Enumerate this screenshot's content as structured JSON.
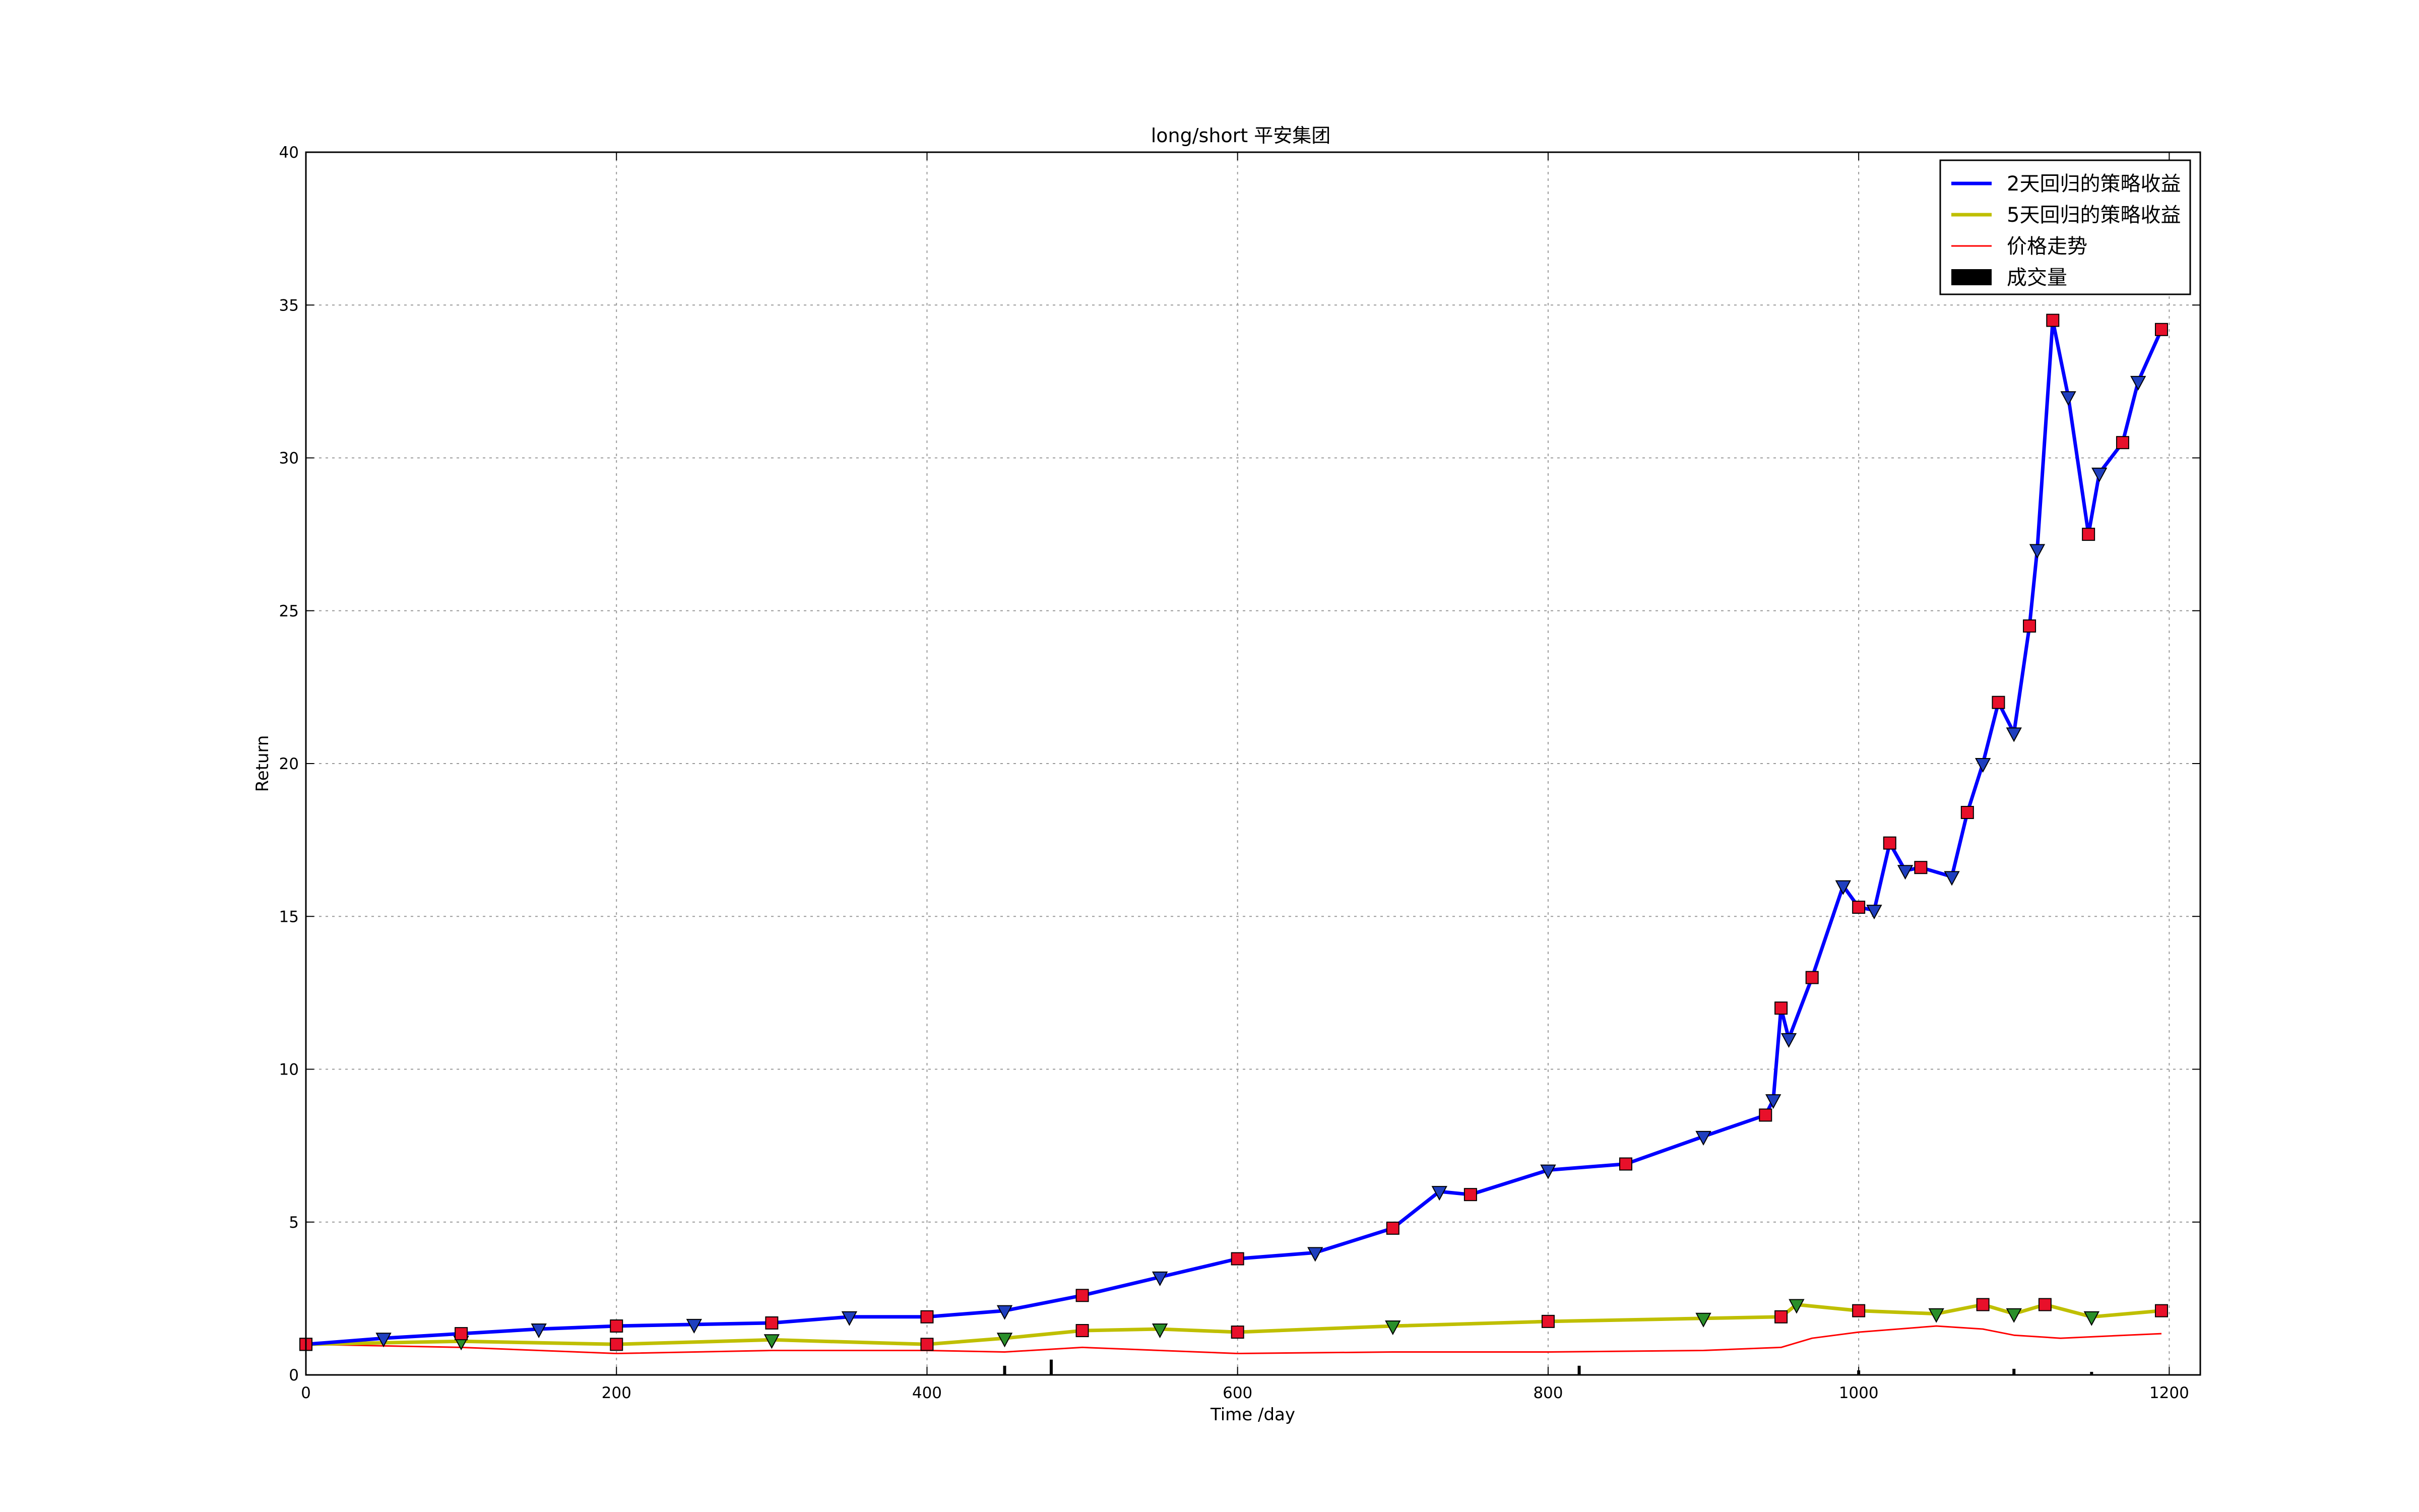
{
  "chart_data": {
    "type": "line",
    "title": "long/short 平安集团",
    "xlabel": "Time /day",
    "ylabel": "Return",
    "xlim": [
      0,
      1220
    ],
    "ylim": [
      0,
      40
    ],
    "xticks": [
      0,
      200,
      400,
      600,
      800,
      1000,
      1200
    ],
    "yticks": [
      0,
      5,
      10,
      15,
      20,
      25,
      30,
      35,
      40
    ],
    "grid": true,
    "legend_position": "top-right",
    "series": [
      {
        "name": "2天回归的策略收益",
        "color": "#0000ff",
        "points": [
          [
            0,
            1.0
          ],
          [
            50,
            1.2
          ],
          [
            100,
            1.35
          ],
          [
            150,
            1.5
          ],
          [
            200,
            1.6
          ],
          [
            250,
            1.65
          ],
          [
            300,
            1.7
          ],
          [
            350,
            1.9
          ],
          [
            400,
            1.9
          ],
          [
            450,
            2.1
          ],
          [
            500,
            2.6
          ],
          [
            550,
            3.2
          ],
          [
            600,
            3.8
          ],
          [
            650,
            4.0
          ],
          [
            700,
            4.8
          ],
          [
            730,
            6.0
          ],
          [
            750,
            5.9
          ],
          [
            800,
            6.7
          ],
          [
            850,
            6.9
          ],
          [
            900,
            7.8
          ],
          [
            940,
            8.5
          ],
          [
            945,
            9.0
          ],
          [
            950,
            12.0
          ],
          [
            955,
            11.0
          ],
          [
            970,
            13.0
          ],
          [
            990,
            16.0
          ],
          [
            1000,
            15.3
          ],
          [
            1010,
            15.2
          ],
          [
            1020,
            17.4
          ],
          [
            1030,
            16.5
          ],
          [
            1040,
            16.6
          ],
          [
            1060,
            16.3
          ],
          [
            1070,
            18.4
          ],
          [
            1080,
            20.0
          ],
          [
            1090,
            22.0
          ],
          [
            1100,
            21.0
          ],
          [
            1110,
            24.5
          ],
          [
            1115,
            27.0
          ],
          [
            1125,
            34.5
          ],
          [
            1135,
            32.0
          ],
          [
            1148,
            27.5
          ],
          [
            1155,
            29.5
          ],
          [
            1170,
            30.5
          ],
          [
            1180,
            32.5
          ],
          [
            1195,
            34.2
          ]
        ]
      },
      {
        "name": "5天回归的策略收益",
        "color": "#bfbf00",
        "points": [
          [
            0,
            1.0
          ],
          [
            100,
            1.1
          ],
          [
            200,
            1.0
          ],
          [
            300,
            1.15
          ],
          [
            400,
            1.0
          ],
          [
            450,
            1.2
          ],
          [
            500,
            1.45
          ],
          [
            550,
            1.5
          ],
          [
            600,
            1.4
          ],
          [
            700,
            1.6
          ],
          [
            800,
            1.75
          ],
          [
            900,
            1.85
          ],
          [
            950,
            1.9
          ],
          [
            960,
            2.3
          ],
          [
            1000,
            2.1
          ],
          [
            1050,
            2.0
          ],
          [
            1080,
            2.3
          ],
          [
            1100,
            2.0
          ],
          [
            1120,
            2.3
          ],
          [
            1150,
            1.9
          ],
          [
            1195,
            2.1
          ]
        ]
      },
      {
        "name": "价格走势",
        "color": "#ff0000",
        "points": [
          [
            0,
            1.0
          ],
          [
            100,
            0.9
          ],
          [
            200,
            0.7
          ],
          [
            300,
            0.8
          ],
          [
            400,
            0.8
          ],
          [
            450,
            0.75
          ],
          [
            500,
            0.9
          ],
          [
            600,
            0.7
          ],
          [
            700,
            0.75
          ],
          [
            800,
            0.75
          ],
          [
            900,
            0.8
          ],
          [
            950,
            0.9
          ],
          [
            970,
            1.2
          ],
          [
            1000,
            1.4
          ],
          [
            1050,
            1.6
          ],
          [
            1080,
            1.5
          ],
          [
            1100,
            1.3
          ],
          [
            1130,
            1.2
          ],
          [
            1195,
            1.35
          ]
        ]
      },
      {
        "name": "成交量",
        "type": "bar",
        "color": "#000000",
        "values": [
          [
            450,
            0.3
          ],
          [
            480,
            0.5
          ],
          [
            820,
            0.3
          ],
          [
            1000,
            0.15
          ],
          [
            1100,
            0.2
          ],
          [
            1150,
            0.1
          ]
        ]
      }
    ]
  }
}
